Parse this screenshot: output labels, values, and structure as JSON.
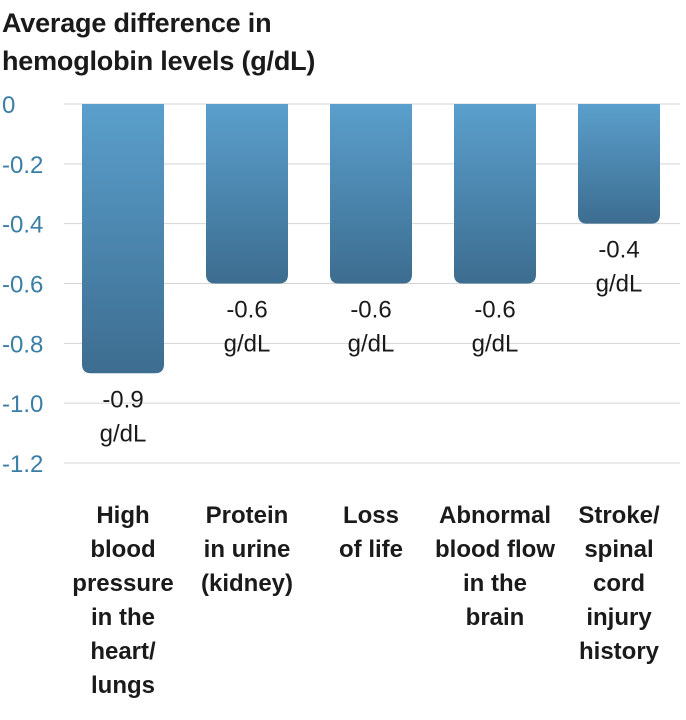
{
  "colors": {
    "bar_top": "#5a9fcc",
    "bar_bottom": "#3d6d90",
    "tick_text": "#3a7ea6",
    "text": "#1a1a1a",
    "grid": "#d4d4d4"
  },
  "chart_data": {
    "type": "bar",
    "title": "Average difference in hemoglobin levels (g/dL)",
    "xlabel": "",
    "ylabel": "",
    "ylim": [
      -1.2,
      0
    ],
    "yticks": [
      0,
      -0.2,
      -0.4,
      -0.6,
      -0.8,
      -1.0,
      -1.2
    ],
    "ytick_labels": [
      "0",
      "-0.2",
      "-0.4",
      "-0.6",
      "-0.8",
      "-1.0",
      "-1.2"
    ],
    "grid": true,
    "categories": [
      [
        "High",
        "blood",
        "pressure",
        "in the",
        "heart/",
        "lungs"
      ],
      [
        "Protein",
        "in urine",
        "(kidney)"
      ],
      [
        "Loss",
        "of life"
      ],
      [
        "Abnormal",
        "blood flow",
        "in the",
        "brain"
      ],
      [
        "Stroke/",
        "spinal",
        "cord",
        "injury",
        "history"
      ]
    ],
    "values": [
      -0.9,
      -0.6,
      -0.6,
      -0.6,
      -0.4
    ],
    "data_labels": [
      [
        "-0.9",
        "g/dL"
      ],
      [
        "-0.6",
        "g/dL"
      ],
      [
        "-0.6",
        "g/dL"
      ],
      [
        "-0.6",
        "g/dL"
      ],
      [
        "-0.4",
        "g/dL"
      ]
    ]
  }
}
